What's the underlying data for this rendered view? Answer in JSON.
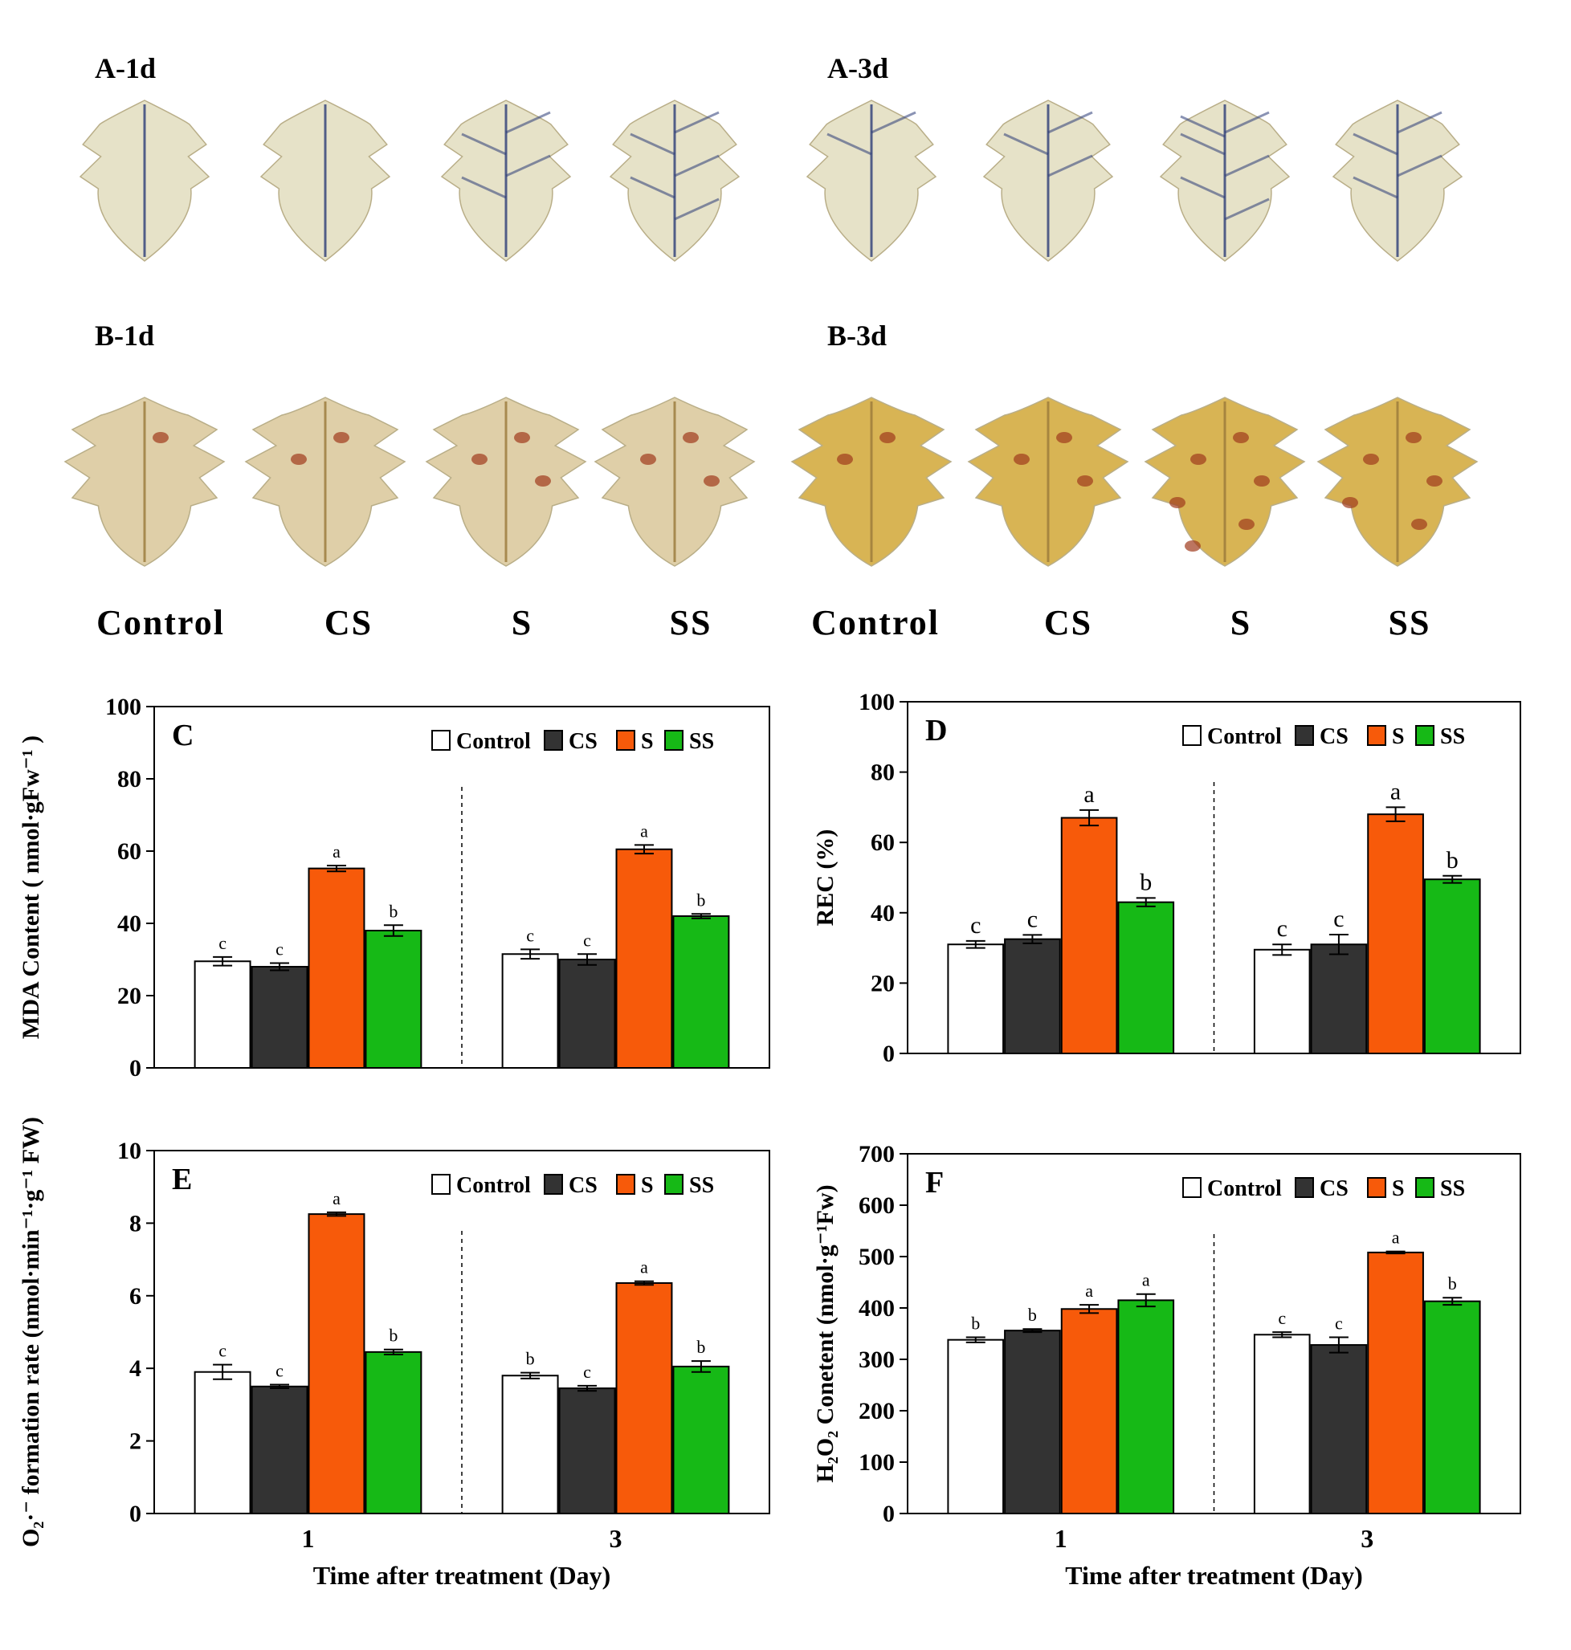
{
  "photo_panels": [
    {
      "label": "A-1d",
      "stain": "nbt",
      "leaves": [
        {
          "id": "a1-control",
          "lobed": false,
          "spots": []
        },
        {
          "id": "a1-cs",
          "lobed": false,
          "spots": []
        },
        {
          "id": "a1-s",
          "lobed": false,
          "spots": [
            "vein",
            "vein",
            "vein",
            "vein"
          ]
        },
        {
          "id": "a1-ss",
          "lobed": false,
          "spots": [
            "vein",
            "vein",
            "vein",
            "vein",
            "vein"
          ]
        }
      ]
    },
    {
      "label": "A-3d",
      "stain": "nbt",
      "leaves": [
        {
          "id": "a3-control",
          "lobed": false,
          "spots": [
            "vein",
            "vein"
          ]
        },
        {
          "id": "a3-cs",
          "lobed": false,
          "spots": [
            "vein",
            "vein",
            "vein"
          ]
        },
        {
          "id": "a3-s",
          "lobed": false,
          "spots": [
            "vein",
            "vein",
            "vein",
            "vein",
            "vein",
            "vein"
          ]
        },
        {
          "id": "a3-ss",
          "lobed": false,
          "spots": [
            "vein",
            "vein",
            "vein",
            "vein"
          ]
        }
      ]
    },
    {
      "label": "B-1d",
      "stain": "dab",
      "leaves": [
        {
          "id": "b1-control",
          "lobed": true,
          "spots": [
            "dab"
          ]
        },
        {
          "id": "b1-cs",
          "lobed": true,
          "spots": [
            "dab",
            "dab"
          ]
        },
        {
          "id": "b1-s",
          "lobed": true,
          "spots": [
            "dab",
            "dab",
            "dab"
          ]
        },
        {
          "id": "b1-ss",
          "lobed": true,
          "spots": [
            "dab",
            "dab",
            "dab"
          ]
        }
      ]
    },
    {
      "label": "B-3d",
      "stain": "dab",
      "leaves": [
        {
          "id": "b3-control",
          "lobed": true,
          "spots": [
            "dab",
            "dab"
          ]
        },
        {
          "id": "b3-cs",
          "lobed": true,
          "spots": [
            "dab",
            "dab",
            "dab"
          ]
        },
        {
          "id": "b3-s",
          "lobed": true,
          "spots": [
            "dab",
            "dab",
            "dab",
            "dab",
            "dab",
            "dab"
          ]
        },
        {
          "id": "b3-ss",
          "lobed": true,
          "spots": [
            "dab",
            "dab",
            "dab",
            "dab",
            "dab"
          ]
        }
      ]
    }
  ],
  "treatment_labels": [
    "Control",
    "CS",
    "S",
    "SS",
    "Control",
    "CS",
    "S",
    "SS"
  ],
  "colors": {
    "Control": "#ffffff",
    "CS": "#333333",
    "S": "#f75a0a",
    "SS": "#16b916",
    "nbt_leaf": "#e6e2c8",
    "nbt_stain": "#2c3c78",
    "dab_leaf_1d": "#dfcfa8",
    "dab_leaf_3d": "#d8b454",
    "dab_stain": "#a03a1c"
  },
  "chart_data": [
    {
      "panel": "C",
      "type": "bar",
      "categories": [
        "1",
        "3"
      ],
      "series": [
        {
          "name": "Control",
          "values": [
            29.5,
            31.5
          ],
          "errors": [
            1.2,
            1.3
          ],
          "letters": [
            "c",
            "c"
          ]
        },
        {
          "name": "CS",
          "values": [
            28.0,
            30.0
          ],
          "errors": [
            1.0,
            1.5
          ],
          "letters": [
            "c",
            "c"
          ]
        },
        {
          "name": "S",
          "values": [
            55.2,
            60.5
          ],
          "errors": [
            0.8,
            1.2
          ],
          "letters": [
            "a",
            "a"
          ]
        },
        {
          "name": "SS",
          "values": [
            38.0,
            42.0
          ],
          "errors": [
            1.5,
            0.6
          ],
          "letters": [
            "b",
            "b"
          ]
        }
      ],
      "ylabel": "MDA Content ( nmol·gFw⁻¹ )",
      "xlabel": "",
      "ylim": [
        0,
        100
      ],
      "yticks": [
        0,
        20,
        40,
        60,
        80,
        100
      ],
      "legend": "top-right",
      "grid": false
    },
    {
      "panel": "D",
      "type": "bar",
      "categories": [
        "1",
        "3"
      ],
      "series": [
        {
          "name": "Control",
          "values": [
            31,
            29.5
          ],
          "errors": [
            1.0,
            1.5
          ],
          "letters": [
            "c",
            "c"
          ]
        },
        {
          "name": "CS",
          "values": [
            32.5,
            31
          ],
          "errors": [
            1.2,
            2.8
          ],
          "letters": [
            "c",
            "c"
          ]
        },
        {
          "name": "S",
          "values": [
            67,
            68
          ],
          "errors": [
            2.2,
            2.0
          ],
          "letters": [
            "a",
            "a"
          ]
        },
        {
          "name": "SS",
          "values": [
            43,
            49.5
          ],
          "errors": [
            1.2,
            1.0
          ],
          "letters": [
            "b",
            "b"
          ]
        }
      ],
      "ylabel": "REC  (%)",
      "xlabel": "",
      "ylim": [
        0,
        100
      ],
      "yticks": [
        0,
        20,
        40,
        60,
        80,
        100
      ],
      "legend": "top-right",
      "grid": false
    },
    {
      "panel": "E",
      "type": "bar",
      "categories": [
        "1",
        "3"
      ],
      "series": [
        {
          "name": "Control",
          "values": [
            3.9,
            3.8
          ],
          "errors": [
            0.2,
            0.08
          ],
          "letters": [
            "c",
            "b"
          ]
        },
        {
          "name": "CS",
          "values": [
            3.5,
            3.45
          ],
          "errors": [
            0.05,
            0.07
          ],
          "letters": [
            "c",
            "c"
          ]
        },
        {
          "name": "S",
          "values": [
            8.25,
            6.35
          ],
          "errors": [
            0.05,
            0.05
          ],
          "letters": [
            "a",
            "a"
          ]
        },
        {
          "name": "SS",
          "values": [
            4.45,
            4.05
          ],
          "errors": [
            0.07,
            0.15
          ],
          "letters": [
            "b",
            "b"
          ]
        }
      ],
      "ylabel": "O₂·⁻ formation rate  (nmol·min⁻¹·g⁻¹ FW)",
      "xlabel": "Time after treatment  (Day)",
      "ylim": [
        0,
        10
      ],
      "yticks": [
        0,
        2,
        4,
        6,
        8,
        10
      ],
      "legend": "top-right",
      "grid": false
    },
    {
      "panel": "F",
      "type": "bar",
      "categories": [
        "1",
        "3"
      ],
      "series": [
        {
          "name": "Control",
          "values": [
            338,
            348
          ],
          "errors": [
            5,
            5
          ],
          "letters": [
            "b",
            "c"
          ]
        },
        {
          "name": "CS",
          "values": [
            356,
            328
          ],
          "errors": [
            3,
            15
          ],
          "letters": [
            "b",
            "c"
          ]
        },
        {
          "name": "S",
          "values": [
            398,
            508
          ],
          "errors": [
            8,
            2
          ],
          "letters": [
            "a",
            "a"
          ]
        },
        {
          "name": "SS",
          "values": [
            415,
            413
          ],
          "errors": [
            12,
            7
          ],
          "letters": [
            "a",
            "b"
          ]
        }
      ],
      "ylabel": "H₂O₂  Conetent (nmol·g⁻¹Fw)",
      "xlabel": "Time after treatment  (Day)",
      "ylim": [
        0,
        700
      ],
      "yticks": [
        0,
        100,
        200,
        300,
        400,
        500,
        600,
        700
      ],
      "legend": "top-right",
      "grid": false
    }
  ]
}
